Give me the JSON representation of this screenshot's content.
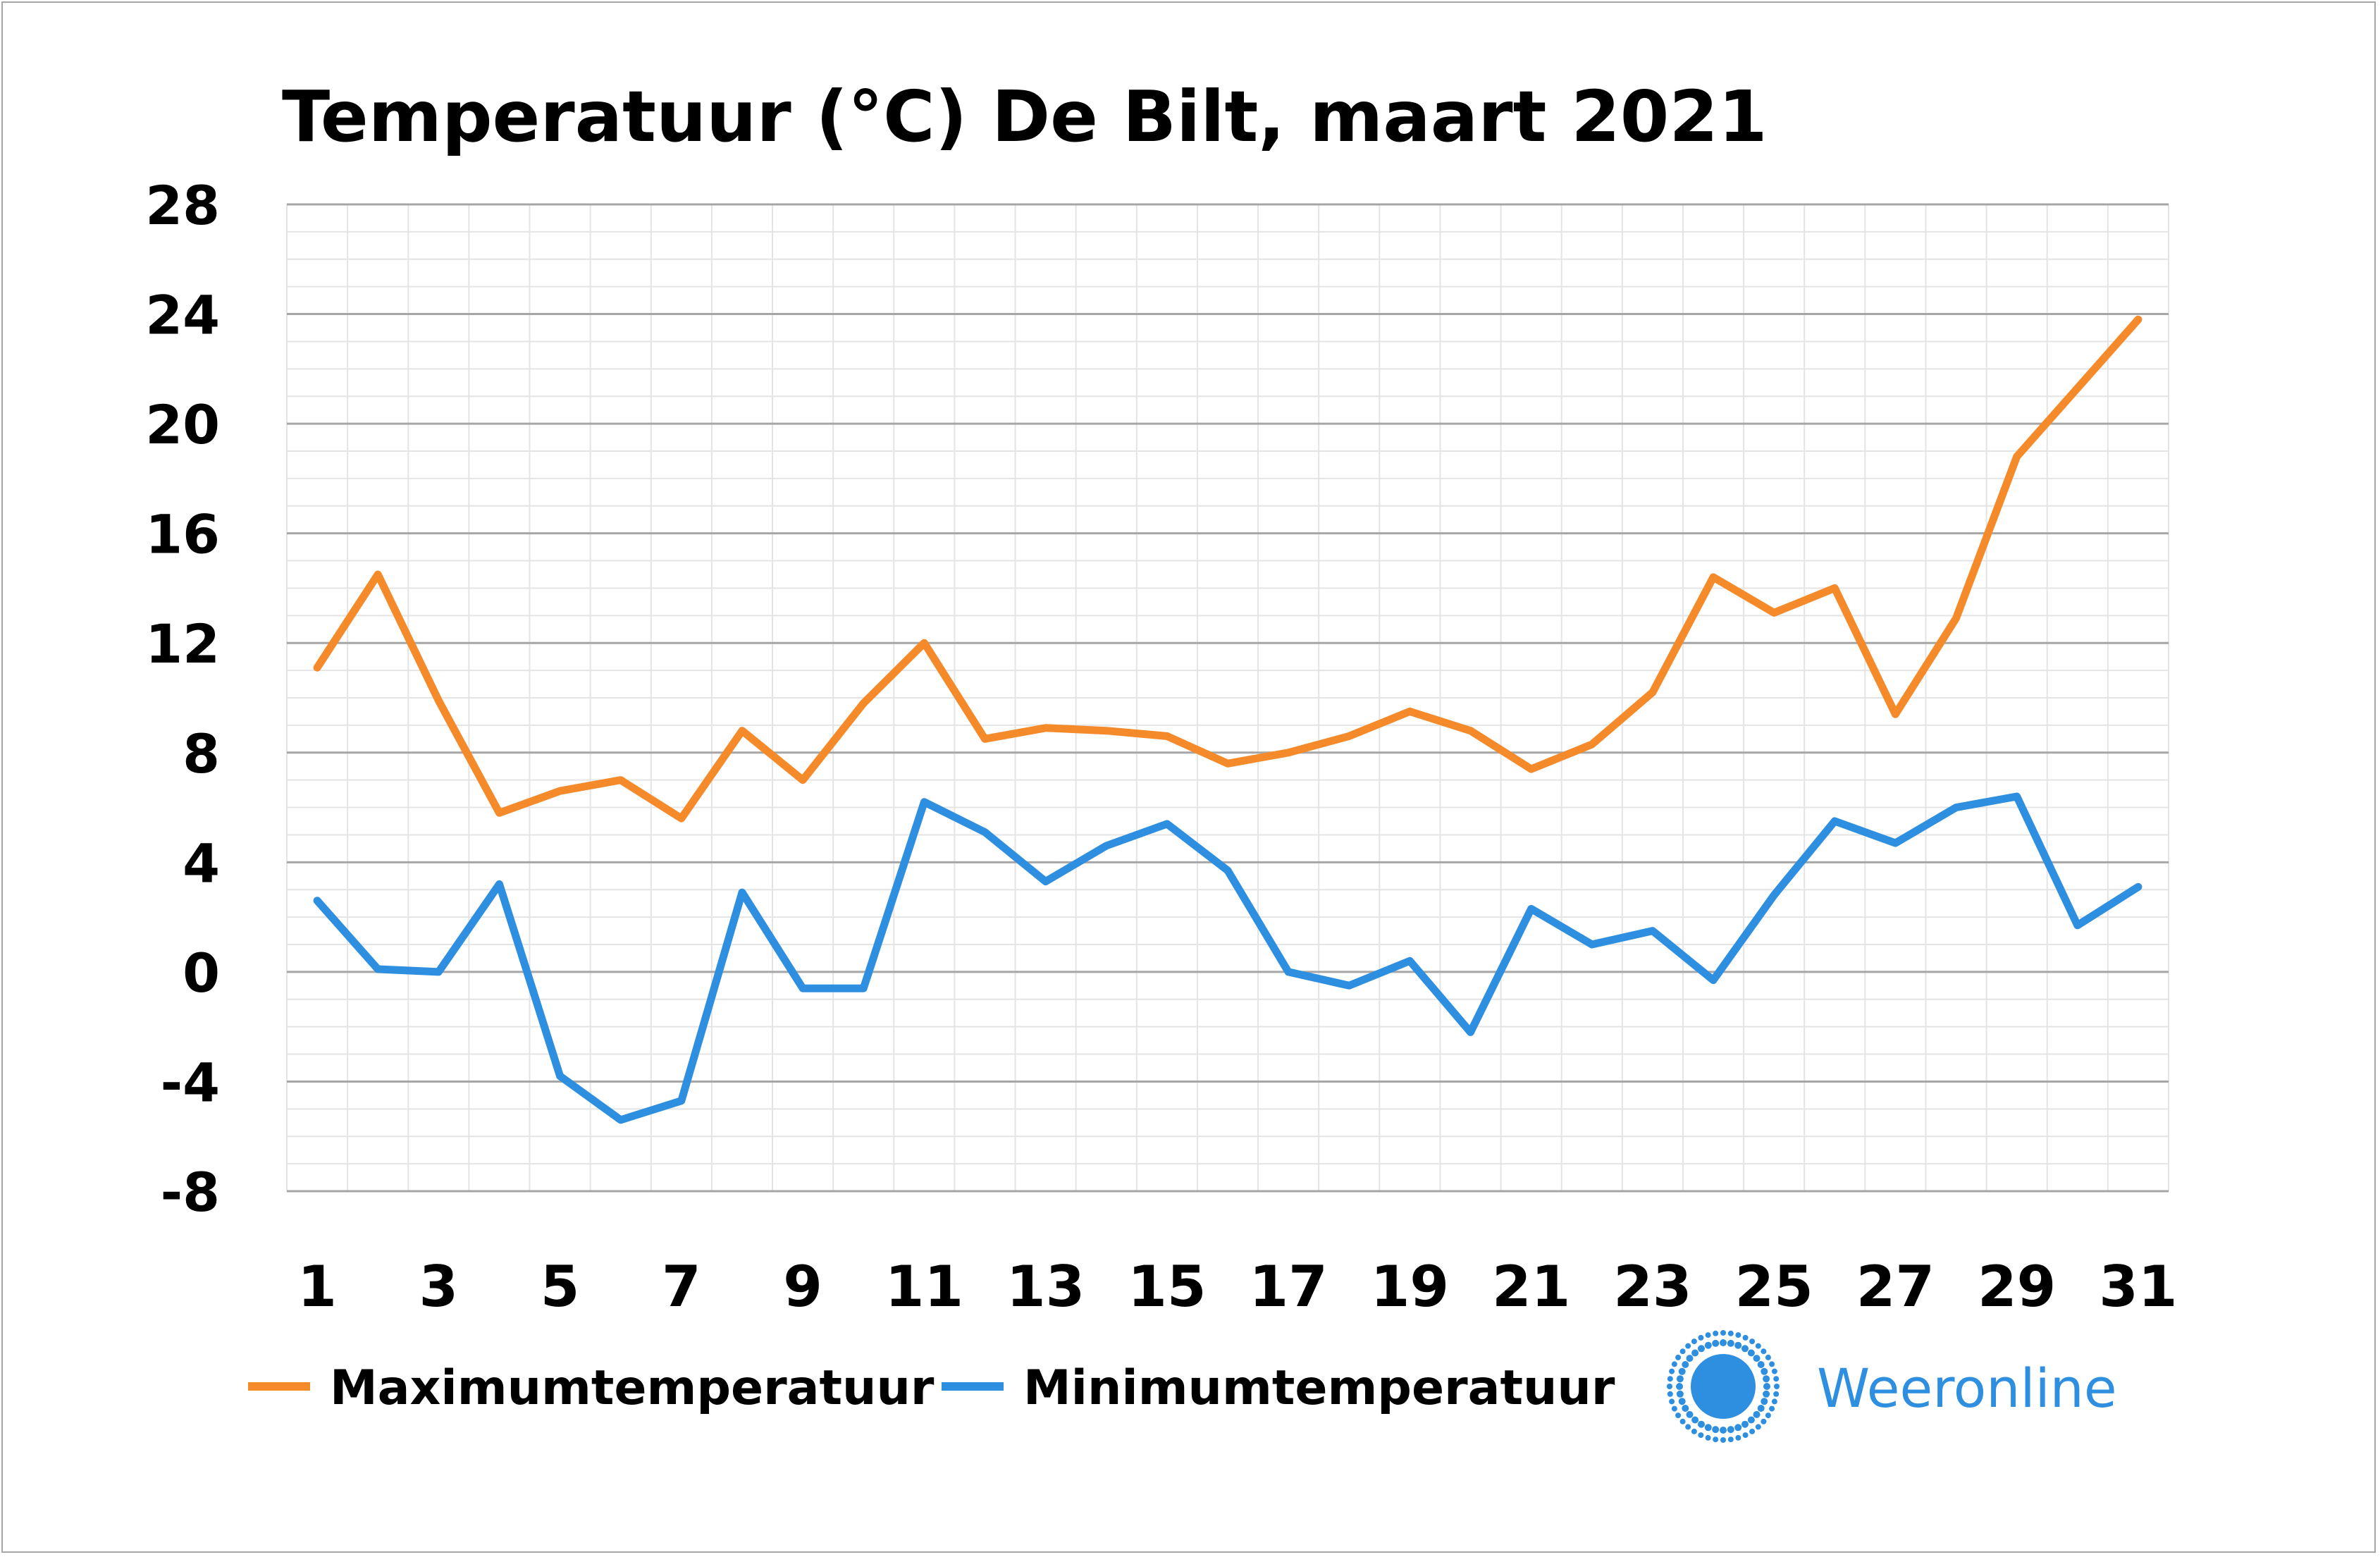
{
  "chart_data": {
    "type": "line",
    "title": "Temperatuur (°C)  De Bilt, maart 2021",
    "xlabel": "",
    "ylabel": "",
    "x": [
      1,
      2,
      3,
      4,
      5,
      6,
      7,
      8,
      9,
      10,
      11,
      12,
      13,
      14,
      15,
      16,
      17,
      18,
      19,
      20,
      21,
      22,
      23,
      24,
      25,
      26,
      27,
      28,
      29,
      30,
      31
    ],
    "x_tick_labels": [
      "1",
      "3",
      "5",
      "7",
      "9",
      "11",
      "13",
      "15",
      "17",
      "19",
      "21",
      "23",
      "25",
      "27",
      "29",
      "31"
    ],
    "y_tick_labels": [
      "28",
      "24",
      "20",
      "16",
      "12",
      "8",
      "4",
      "0",
      "-4",
      "-8"
    ],
    "ylim": [
      -8,
      28
    ],
    "grid": true,
    "legend_position": "bottom-left",
    "series": [
      {
        "name": "Maximumtemperatuur",
        "color": "#f58a2a",
        "values": [
          11.1,
          14.5,
          9.9,
          5.8,
          6.6,
          7.0,
          5.6,
          8.8,
          7.0,
          9.8,
          12.0,
          8.5,
          8.9,
          8.8,
          8.6,
          7.6,
          8.0,
          8.6,
          9.5,
          8.8,
          7.4,
          8.3,
          10.2,
          14.4,
          13.1,
          14.0,
          9.4,
          12.9,
          18.8,
          21.3,
          23.8
        ]
      },
      {
        "name": "Minimumtemperatuur",
        "color": "#2e8fe0",
        "values": [
          2.6,
          0.1,
          0.0,
          3.2,
          -3.8,
          -5.4,
          -4.7,
          2.9,
          -0.6,
          -0.6,
          6.2,
          5.1,
          3.3,
          4.6,
          5.4,
          3.7,
          0.0,
          -0.5,
          0.4,
          -2.2,
          2.3,
          1.0,
          1.5,
          -0.3,
          2.8,
          5.5,
          4.7,
          6.0,
          6.4,
          1.7,
          3.1
        ]
      }
    ]
  },
  "brand": {
    "name": "Weeronline",
    "logo_icon": "sun-logo-icon",
    "color": "#2e8fe0"
  }
}
